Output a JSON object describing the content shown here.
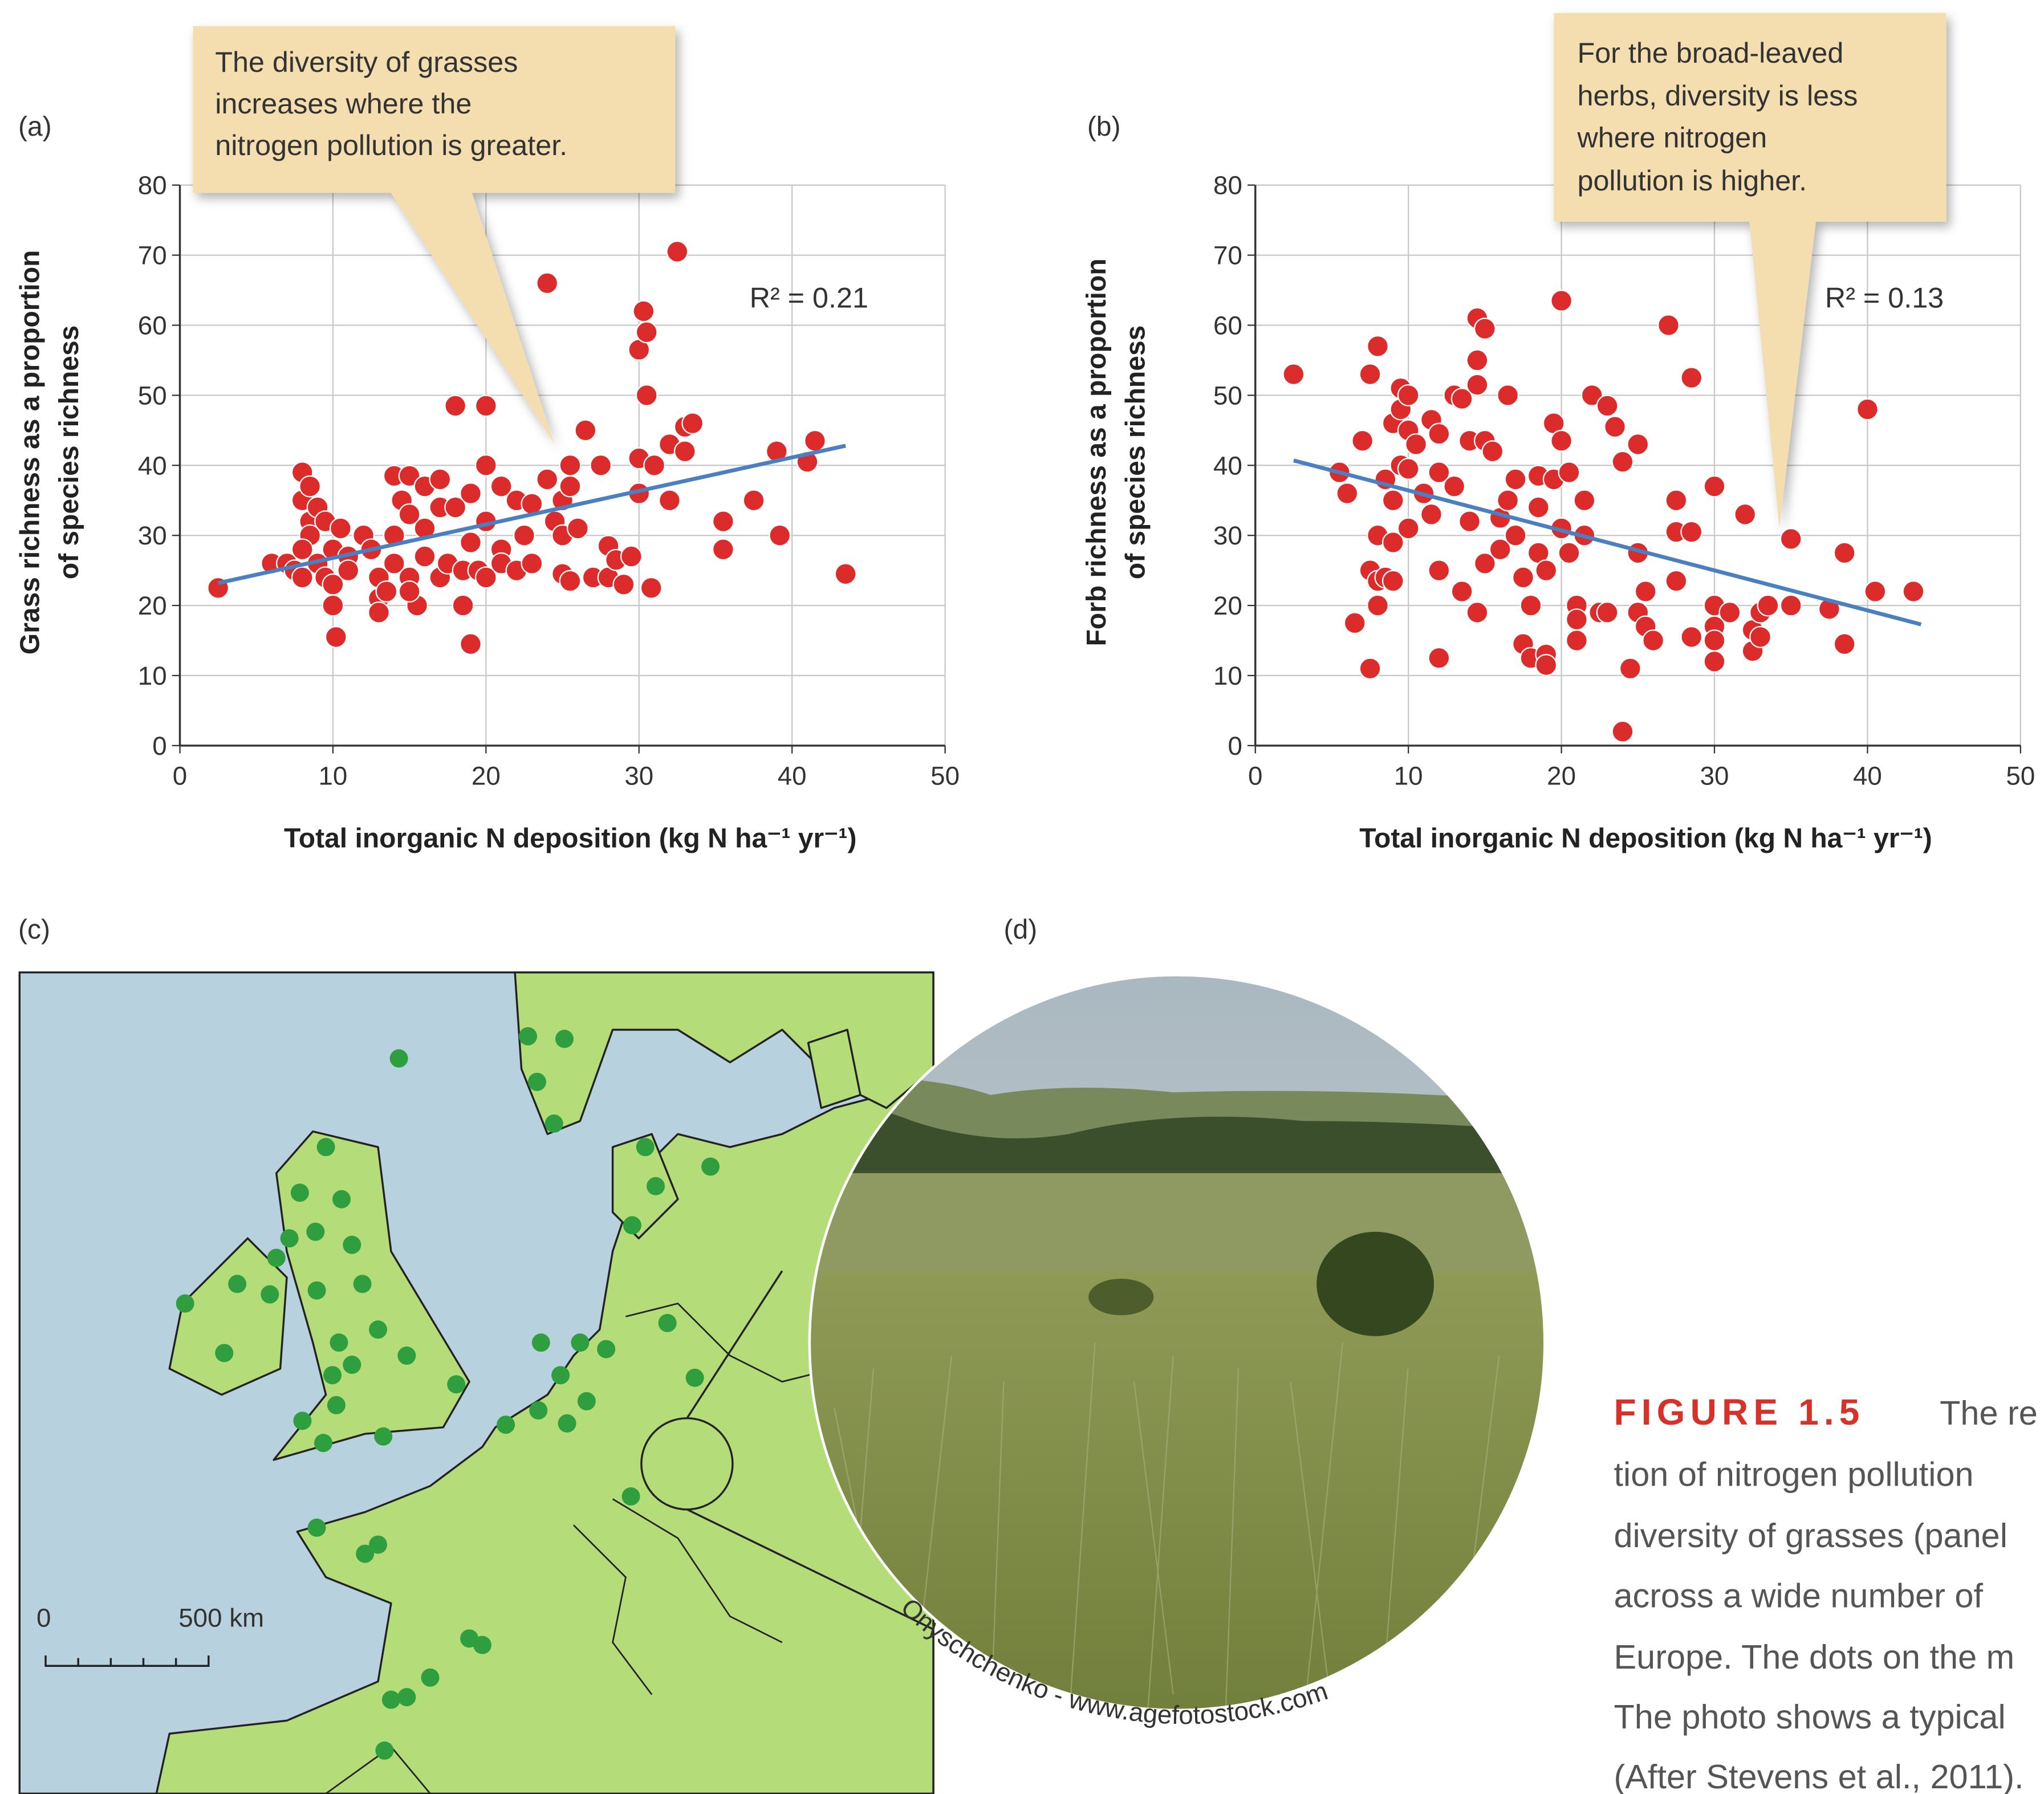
{
  "chart_data": [
    {
      "type": "scatter",
      "xlabel": "Total inorganic N deposition (kg N ha⁻¹ yr⁻¹)",
      "ylabel": [
        "Grass richness as a proportion",
        "of species richness"
      ],
      "annotation": "R² = 0.21",
      "xlim": [
        0,
        50
      ],
      "ylim": [
        0,
        80
      ],
      "xticks": [
        0,
        10,
        20,
        30,
        40,
        50
      ],
      "yticks": [
        0,
        10,
        20,
        30,
        40,
        50,
        60,
        70,
        80
      ],
      "grid": true,
      "series": [
        {
          "color": "#dc2b2b",
          "x": [
            2.5,
            6,
            7,
            7.5,
            8,
            8,
            8.5,
            8.5,
            8.5,
            8,
            8,
            9,
            9.5,
            9,
            9.5,
            10,
            10,
            10.2,
            10,
            10.5,
            11,
            11,
            12,
            12.5,
            13,
            13,
            13,
            13.5,
            14,
            14,
            14,
            14.5,
            15,
            15,
            15,
            15.5,
            15,
            16,
            16,
            16,
            17,
            17,
            17,
            17.5,
            18,
            18,
            18.5,
            18.5,
            19,
            19,
            19,
            19.5,
            20,
            20,
            20,
            20,
            21,
            21,
            21,
            22,
            22,
            22.5,
            23,
            23,
            24,
            24,
            24.5,
            25,
            25,
            25,
            25.5,
            25.5,
            25.5,
            26,
            26.5,
            27,
            27.5,
            28,
            28,
            28.5,
            29,
            29.5,
            30,
            30,
            30,
            30.3,
            30.5,
            30.5,
            30.8,
            31,
            32,
            32,
            32.5,
            33,
            33,
            33.5,
            35.5,
            35.5,
            37.5,
            39,
            39.2,
            41,
            41.5,
            43.5
          ],
          "values": [
            22.5,
            26,
            26,
            25,
            39,
            35,
            37,
            32,
            30,
            28,
            24,
            34,
            32,
            26,
            24,
            23,
            20,
            15.5,
            28,
            31,
            27,
            25,
            30,
            28,
            24,
            21,
            19,
            22,
            26,
            38.5,
            30,
            35,
            33,
            38.5,
            24,
            20,
            22,
            37,
            31,
            27,
            24,
            34,
            38,
            26,
            34,
            48.5,
            20,
            25,
            14.5,
            36,
            29,
            25,
            40,
            48.5,
            32,
            24,
            28,
            37,
            26,
            35,
            25,
            30,
            34.5,
            26,
            38,
            66,
            32,
            35,
            30,
            24.5,
            40,
            37,
            23.5,
            31,
            45,
            24,
            40,
            28.5,
            24,
            26.5,
            23,
            27,
            56.5,
            36,
            41,
            62,
            59,
            50,
            22.5,
            40,
            35,
            43,
            70.5,
            42,
            45.5,
            46,
            32,
            28,
            35,
            42,
            30,
            40.5,
            43.5,
            24.5
          ]
        }
      ],
      "trend": {
        "color": "#4a7fc1",
        "x": [
          2.5,
          43.5
        ],
        "values": [
          23.2,
          42.8
        ]
      }
    },
    {
      "type": "scatter",
      "xlabel": "Total inorganic N deposition (kg N ha⁻¹ yr⁻¹)",
      "ylabel": [
        "Forb richness as a proportion",
        "of species richness"
      ],
      "annotation": "R² = 0.13",
      "xlim": [
        0,
        50
      ],
      "ylim": [
        0,
        80
      ],
      "xticks": [
        0,
        10,
        20,
        30,
        40,
        50
      ],
      "yticks": [
        0,
        10,
        20,
        30,
        40,
        50,
        60,
        70,
        80
      ],
      "grid": true,
      "series": [
        {
          "color": "#dc2b2b",
          "x": [
            2.5,
            5.5,
            6,
            6.5,
            7,
            7.5,
            8,
            7.5,
            7.5,
            8,
            8,
            8,
            8.5,
            8.5,
            9,
            9,
            9,
            9,
            9.5,
            9.5,
            9.5,
            10,
            10,
            10,
            10,
            10.5,
            11,
            11.5,
            11.5,
            12,
            12,
            12,
            12,
            13,
            13,
            13.5,
            13.5,
            14,
            14,
            14.5,
            14.5,
            14.5,
            15,
            15,
            14.5,
            15,
            15.5,
            16,
            16,
            16.5,
            16.5,
            17,
            17,
            17.5,
            17.5,
            18,
            18,
            18.5,
            18.5,
            18.5,
            19,
            19,
            19,
            19.5,
            19.5,
            20,
            20,
            20,
            20.5,
            20.5,
            21,
            21,
            21,
            21.5,
            21.5,
            22,
            22.5,
            23,
            23,
            23.5,
            24,
            24,
            24.5,
            25,
            25,
            25,
            25.5,
            25.5,
            26,
            27,
            27.5,
            27.5,
            27.5,
            28.5,
            28.5,
            28.5,
            30,
            30,
            30,
            30,
            30,
            31,
            32,
            32.5,
            32.5,
            33,
            33,
            33.5,
            35,
            35,
            37.5,
            38.5,
            38.5,
            40,
            40.5,
            43
          ],
          "values": [
            53,
            39,
            36,
            17.5,
            43.5,
            53,
            57,
            25,
            11,
            30,
            23.5,
            20,
            38,
            24,
            46,
            35,
            29,
            23.5,
            51,
            48,
            40,
            50,
            45,
            39.5,
            31,
            43,
            36,
            33,
            46.5,
            44.5,
            25,
            12.5,
            39,
            50,
            37,
            49.5,
            22,
            43.5,
            32,
            55,
            61,
            51.5,
            59.5,
            43.5,
            19,
            26,
            42,
            32.5,
            28,
            50,
            35,
            38,
            30,
            24,
            14.5,
            20,
            12.5,
            38.5,
            34,
            27.5,
            25,
            13,
            11.5,
            46,
            38,
            31,
            63.5,
            43.5,
            39,
            27.5,
            20,
            18,
            15,
            35,
            30,
            50,
            19,
            48.5,
            19,
            45.5,
            40.5,
            2,
            11,
            19,
            43,
            27.5,
            22,
            17,
            15,
            60,
            23.5,
            35,
            30.5,
            52.5,
            30.5,
            15.5,
            37,
            20,
            17,
            15,
            12,
            19,
            33,
            16.5,
            13.5,
            19,
            15.5,
            20,
            20,
            29.5,
            19.5,
            14.5,
            27.5,
            48,
            22,
            22
          ]
        }
      ],
      "trend": {
        "color": "#4a7fc1",
        "x": [
          2.5,
          43.5
        ],
        "values": [
          40.7,
          17.3
        ]
      }
    }
  ],
  "panel_labels": [
    "(a)",
    "(b)",
    "(c)",
    "(d)"
  ],
  "callouts": [
    {
      "lines": [
        "The diversity of grasses",
        "increases where the",
        "nitrogen pollution is greater."
      ]
    },
    {
      "lines": [
        "For the broad-leaved",
        "herbs, diversity is less",
        "where nitrogen",
        "pollution is higher."
      ]
    }
  ],
  "map": {
    "scale_labels": [
      "0",
      "500  km"
    ]
  },
  "photo": {
    "credit": "Onyschchenko - www.agefotostock.com"
  },
  "caption": {
    "heading": "FIGURE 1.5",
    "lines": [
      "The re",
      "tion of nitrogen pollution",
      "diversity of grasses (panel",
      "across a wide number of",
      "Europe. The dots on the m",
      "The photo shows a typical",
      "(After Stevens et al., 2011)."
    ]
  }
}
